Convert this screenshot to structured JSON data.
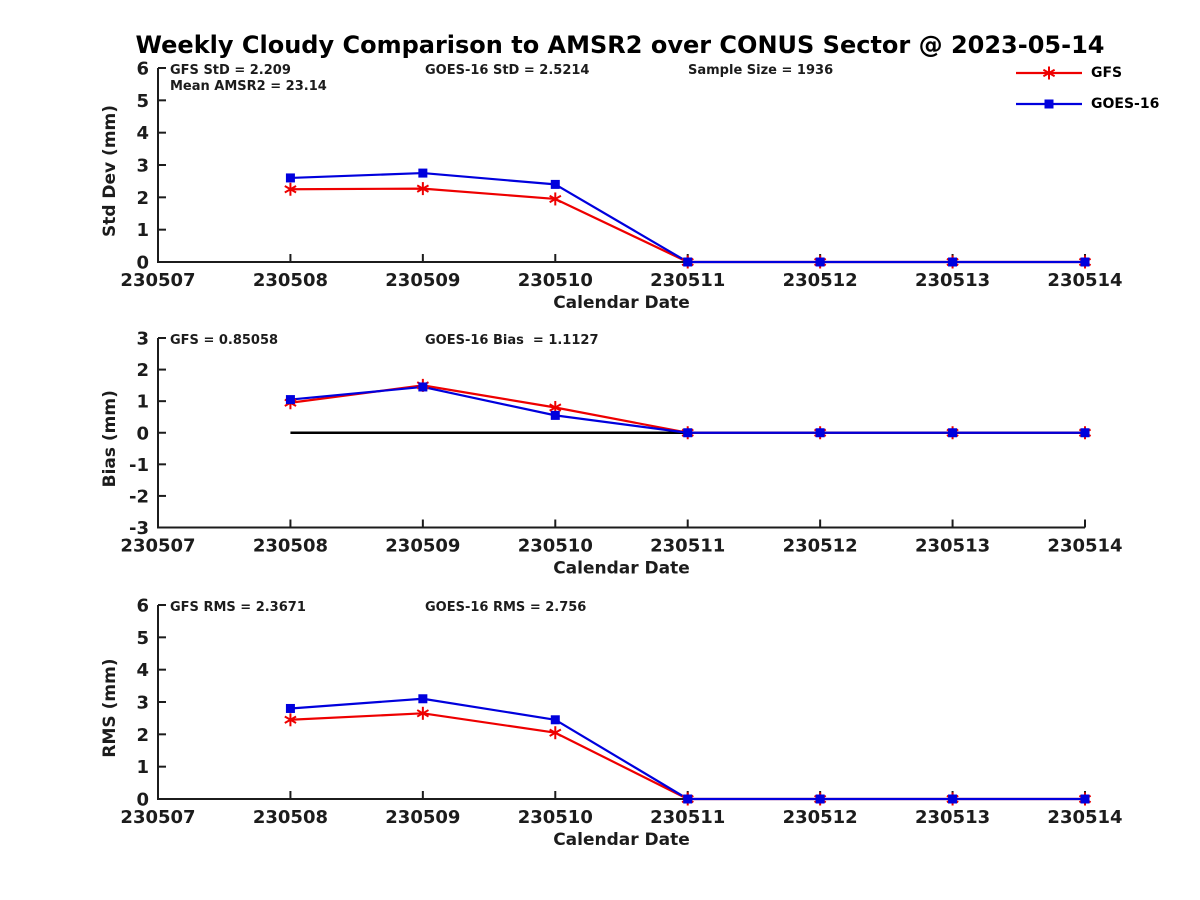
{
  "title": "Weekly Cloudy Comparison to AMSR2 over CONUS Sector @ 2023-05-14",
  "colors": {
    "gfs": "#ee0000",
    "goes16": "#0000dd",
    "axis": "#1c1c1c",
    "zero_line": "#000000"
  },
  "legend": [
    {
      "name": "GFS",
      "color": "#ee0000",
      "marker": "asterisk"
    },
    {
      "name": "GOES-16",
      "color": "#0000dd",
      "marker": "square"
    }
  ],
  "chart_data": [
    {
      "type": "line",
      "title": "",
      "ylabel": "Std Dev (mm)",
      "xlabel": "Calendar Date",
      "categories": [
        "230507",
        "230508",
        "230509",
        "230510",
        "230511",
        "230512",
        "230513",
        "230514"
      ],
      "ylim": [
        0,
        6
      ],
      "yticks": [
        0,
        1,
        2,
        3,
        4,
        5,
        6
      ],
      "grid": false,
      "zero_line": false,
      "legend_position": "top-right-outside",
      "annotations": [
        {
          "text": "GFS StD = 2.209",
          "col": 0,
          "row": 0
        },
        {
          "text": "Mean AMSR2 = 23.14",
          "col": 0,
          "row": 1
        },
        {
          "text": "GOES-16 StD = 2.5214",
          "col": 1,
          "row": 0
        },
        {
          "text": "Sample Size = 1936",
          "col": 2,
          "row": 0
        }
      ],
      "series": [
        {
          "name": "GFS",
          "color": "#ee0000",
          "marker": "asterisk",
          "values": [
            null,
            2.25,
            2.27,
            1.95,
            0,
            0,
            0,
            0
          ]
        },
        {
          "name": "GOES-16",
          "color": "#0000dd",
          "marker": "square",
          "values": [
            null,
            2.6,
            2.75,
            2.4,
            0,
            0,
            0,
            0
          ]
        }
      ]
    },
    {
      "type": "line",
      "title": "",
      "ylabel": "Bias (mm)",
      "xlabel": "Calendar Date",
      "categories": [
        "230507",
        "230508",
        "230509",
        "230510",
        "230511",
        "230512",
        "230513",
        "230514"
      ],
      "ylim": [
        -3,
        3
      ],
      "yticks": [
        -3,
        -2,
        -1,
        0,
        1,
        2,
        3
      ],
      "grid": false,
      "zero_line": true,
      "legend_position": "none",
      "annotations": [
        {
          "text": "GFS = 0.85058",
          "col": 0,
          "row": 0
        },
        {
          "text": "GOES-16 Bias  = 1.1127",
          "col": 1,
          "row": 0
        }
      ],
      "series": [
        {
          "name": "GFS",
          "color": "#ee0000",
          "marker": "asterisk",
          "values": [
            null,
            0.95,
            1.5,
            0.8,
            0,
            0,
            0,
            0
          ]
        },
        {
          "name": "GOES-16",
          "color": "#0000dd",
          "marker": "square",
          "values": [
            null,
            1.05,
            1.45,
            0.55,
            0,
            0,
            0,
            0
          ]
        }
      ]
    },
    {
      "type": "line",
      "title": "",
      "ylabel": "RMS (mm)",
      "xlabel": "Calendar Date",
      "categories": [
        "230507",
        "230508",
        "230509",
        "230510",
        "230511",
        "230512",
        "230513",
        "230514"
      ],
      "ylim": [
        0,
        6
      ],
      "yticks": [
        0,
        1,
        2,
        3,
        4,
        5,
        6
      ],
      "grid": false,
      "zero_line": false,
      "legend_position": "none",
      "annotations": [
        {
          "text": "GFS RMS = 2.3671",
          "col": 0,
          "row": 0
        },
        {
          "text": "GOES-16 RMS = 2.756",
          "col": 1,
          "row": 0
        }
      ],
      "series": [
        {
          "name": "GFS",
          "color": "#ee0000",
          "marker": "asterisk",
          "values": [
            null,
            2.45,
            2.65,
            2.05,
            0,
            0,
            0,
            0
          ]
        },
        {
          "name": "GOES-16",
          "color": "#0000dd",
          "marker": "square",
          "values": [
            null,
            2.8,
            3.1,
            2.45,
            0,
            0,
            0,
            0
          ]
        }
      ]
    }
  ]
}
